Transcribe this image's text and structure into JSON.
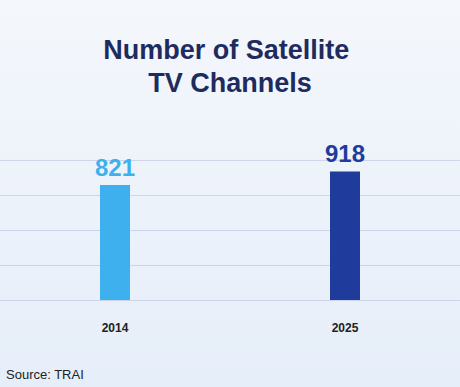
{
  "chart_data": {
    "type": "bar",
    "title": "Number of Satellite TV Channels",
    "source": "Source: TRAI",
    "categories": [
      "2014",
      "2025"
    ],
    "values": [
      821,
      918
    ],
    "colors": [
      "#3fb0ee",
      "#1f3b9c"
    ],
    "ylim": [
      0,
      1000
    ],
    "yticks": [
      0,
      250,
      500,
      750,
      1000
    ],
    "grid": true,
    "data_labels": true,
    "tick_labels": "x"
  }
}
